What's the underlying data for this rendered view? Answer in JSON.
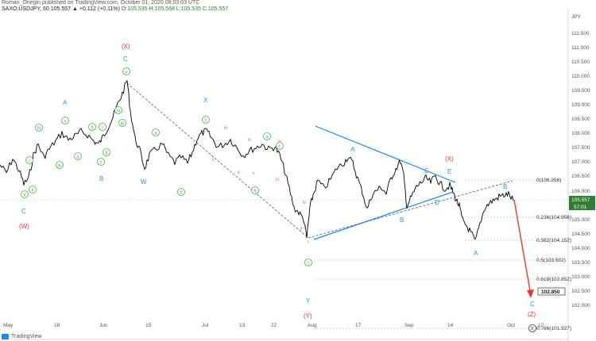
{
  "header": {
    "publisher_line": "Roman_Onegin published on TradingView.com, October 01, 2020 08:03:03 UTC",
    "symbol_line": "SAXO:USDJPY, 60 105.557 ▲ +0.112 (+0.11%)",
    "ohlc": "O:105.535 H:105.568 L:105.535 C:105.557"
  },
  "footer": {
    "brand": "TradingView"
  },
  "y_axis": {
    "currency_label": "JPY",
    "ticks": [
      "111.500",
      "111.000",
      "110.500",
      "110.000",
      "109.500",
      "109.000",
      "108.500",
      "108.000",
      "107.500",
      "107.000",
      "106.500",
      "106.000",
      "105.500",
      "105.000",
      "104.500",
      "104.000",
      "103.500",
      "103.000",
      "102.500",
      "102.000"
    ],
    "last_price": "105.557",
    "countdown": "57:01",
    "target_price": "102.850"
  },
  "x_axis": {
    "ticks": [
      "May",
      "18",
      "Jun",
      "15",
      "Jul",
      "13",
      "22",
      "Aug",
      "17",
      "Sep",
      "14",
      "Oct",
      "12"
    ]
  },
  "fib_levels": [
    {
      "label": "0(106.256)"
    },
    {
      "label": "0.236(104.956)"
    },
    {
      "label": "0.382(104.152)"
    },
    {
      "label": "0.5(103.502)"
    },
    {
      "label": "0.618(102.852)"
    },
    {
      "label": "0.786(101.927)"
    }
  ],
  "wave_labels": {
    "blue": [
      "C",
      "A",
      "B",
      "C",
      "W",
      "X",
      "A",
      "B",
      "C",
      "D",
      "E",
      "B",
      "A",
      "C",
      "Y"
    ],
    "red": [
      "(W)",
      "(X)",
      "(X)",
      "(Y)",
      "(Z)"
    ],
    "green": [
      "v",
      "ii",
      "i",
      "iii",
      "iv",
      "v",
      "a",
      "b",
      "i",
      "ii",
      "iii",
      "c",
      "iv",
      "v",
      "a",
      "b",
      "c",
      "b",
      "a",
      "c",
      "c"
    ],
    "pink": [
      "ii",
      "iii",
      "iv",
      "v",
      "iv",
      "ii",
      "iii",
      "iv",
      "v",
      "ii",
      "i"
    ],
    "circled_x": "X"
  },
  "colors": {
    "price_line": "#000000",
    "wave_blue": "#2196f3",
    "wave_red": "#e53935",
    "wave_green": "#4caf50",
    "wave_pink": "#f06292",
    "trendline": "#1e88e5",
    "arrow": "#e53935"
  }
}
